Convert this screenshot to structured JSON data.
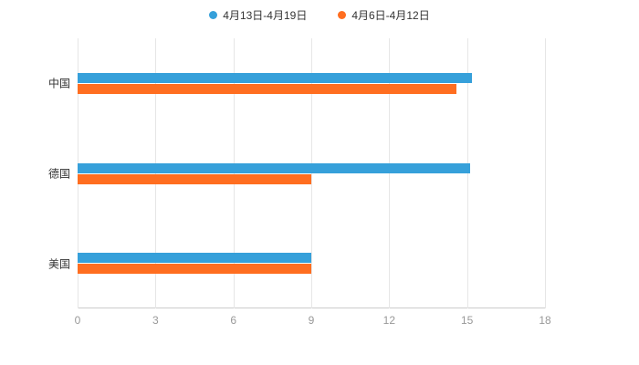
{
  "chart_data": {
    "type": "bar",
    "orientation": "horizontal",
    "title": "",
    "categories": [
      "中国",
      "德国",
      "美国"
    ],
    "series": [
      {
        "name": "4月13日-4月19日",
        "color": "#36a0da",
        "values": [
          15.2,
          15.1,
          9
        ]
      },
      {
        "name": "4月6日-4月12日",
        "color": "#ff6e20",
        "values": [
          14.6,
          9,
          9
        ]
      }
    ],
    "x_ticks": [
      0,
      3,
      6,
      9,
      12,
      15,
      18
    ],
    "xlim": [
      0,
      18
    ],
    "grid": true,
    "legend_position": "top",
    "background_color": "#ffffff",
    "axis_line_color": "#cccccc",
    "gridline_color": "#e6e6e6",
    "tick_label_color": "#999999",
    "category_label_color": "#333333"
  }
}
